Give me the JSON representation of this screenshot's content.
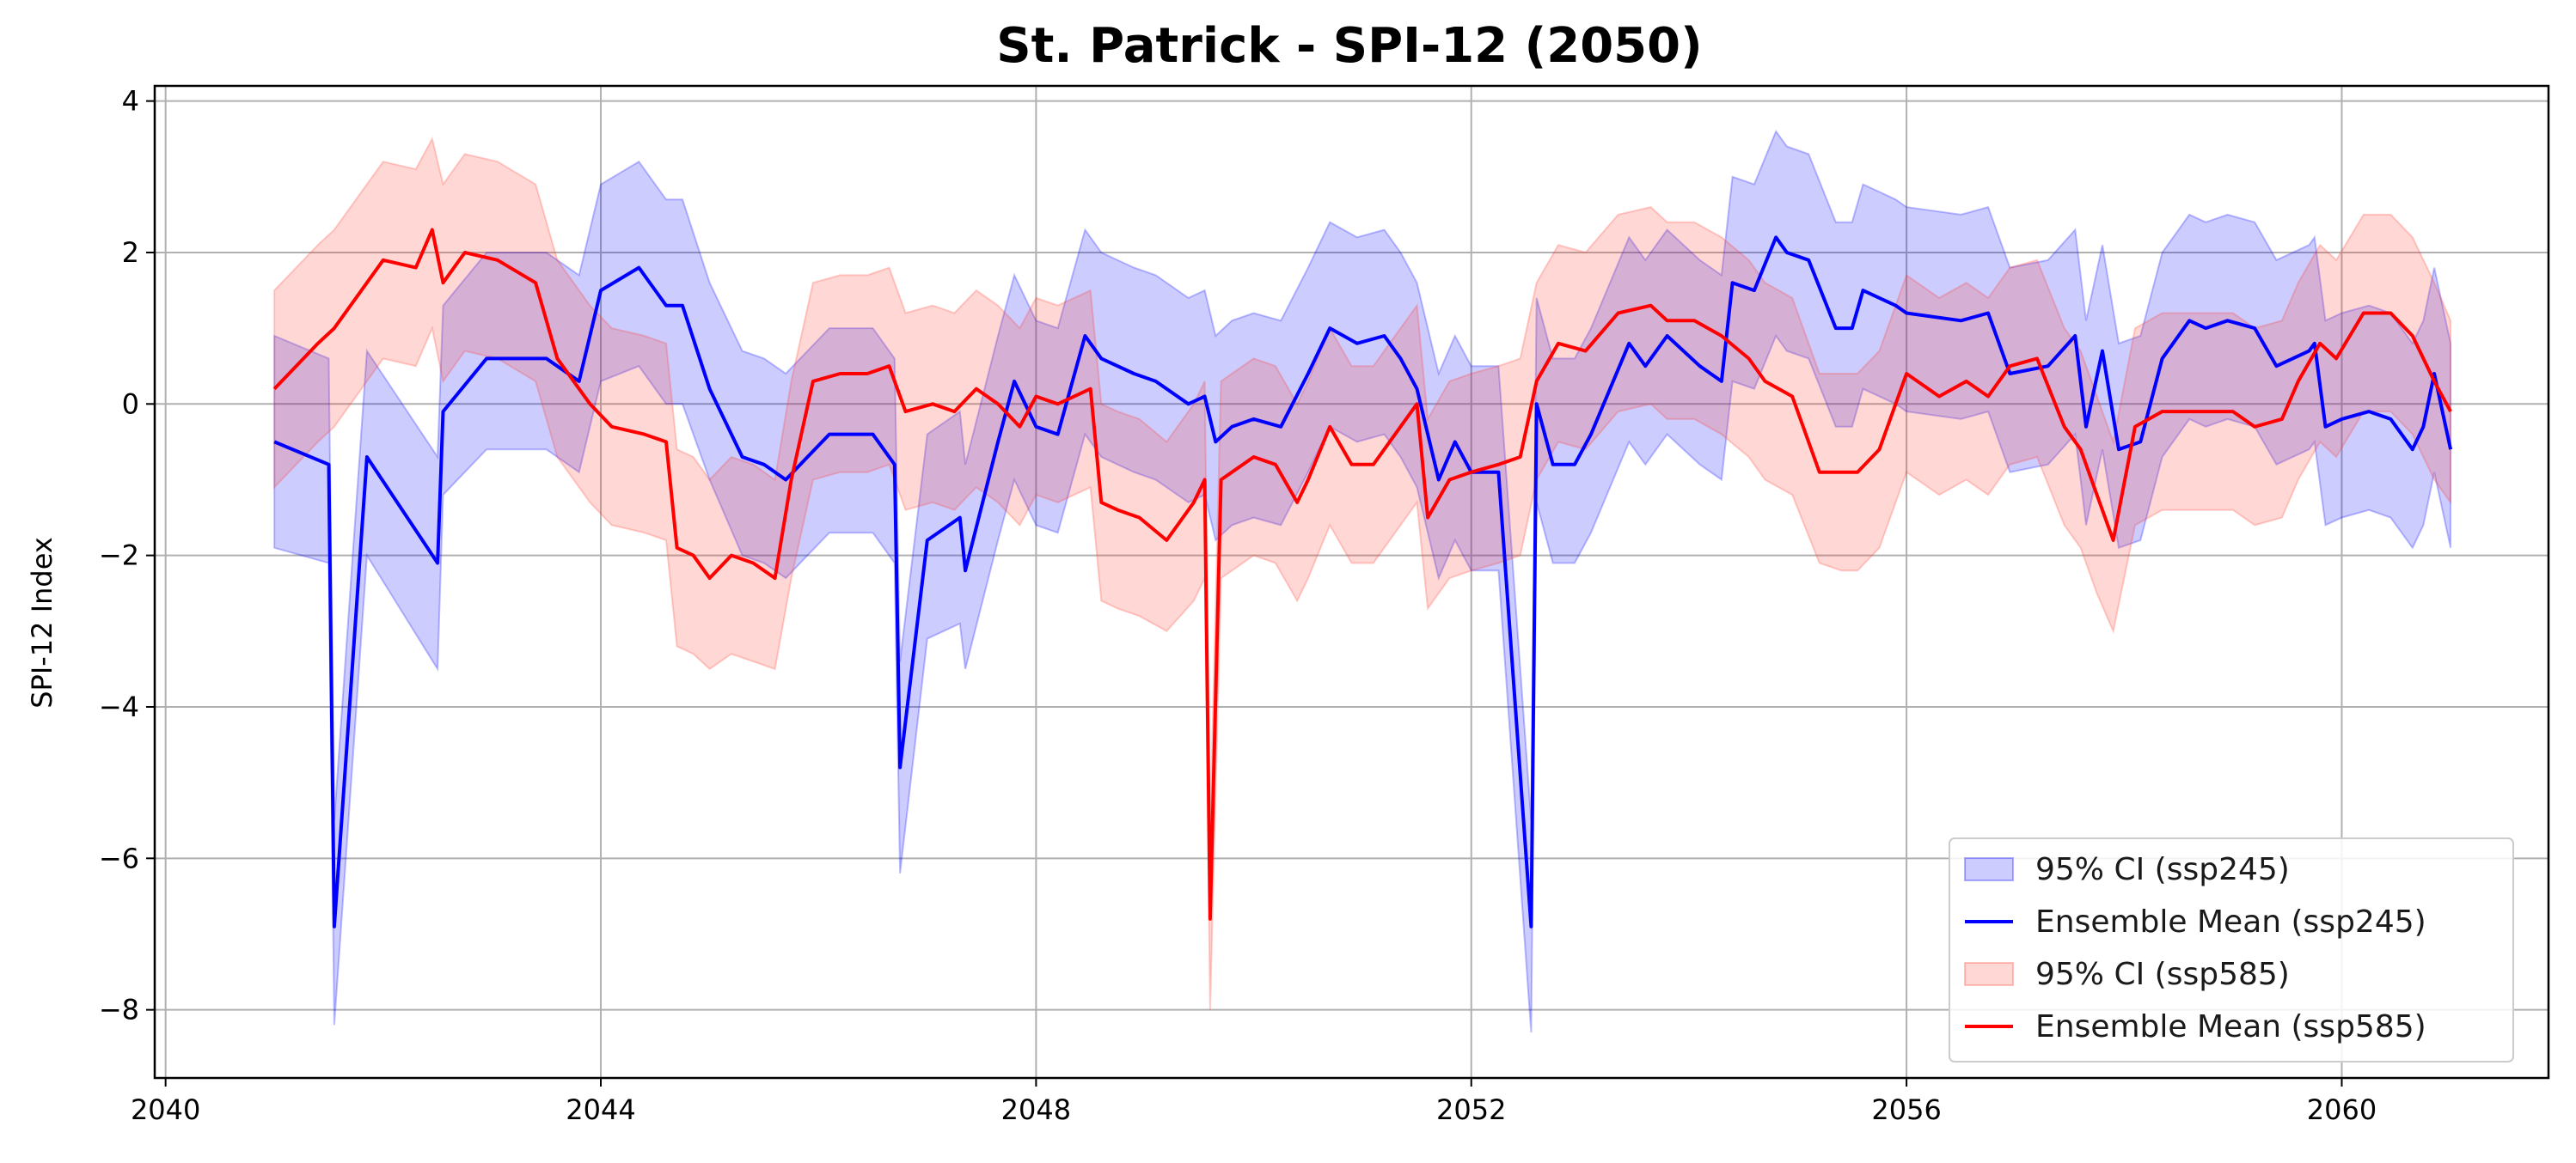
{
  "chart_data": {
    "type": "line",
    "title": "St. Patrick - SPI-12 (2050)",
    "xlabel": "",
    "ylabel": "SPI-12 Index",
    "xlim": [
      2039.9,
      2061.9
    ],
    "ylim": [
      -8.9,
      4.2
    ],
    "xticks": [
      2040,
      2044,
      2048,
      2052,
      2056,
      2060
    ],
    "yticks": [
      4,
      2,
      0,
      -2,
      -4,
      -6,
      -8
    ],
    "ytick_labels": [
      "4",
      "2",
      "0",
      "−2",
      "−4",
      "−6",
      "−8"
    ],
    "grid": true,
    "legend_position": "lower-right",
    "legend": [
      {
        "label": "95% CI (ssp245)",
        "kind": "area",
        "color": "#0000ff"
      },
      {
        "label": "Ensemble Mean (ssp245)",
        "kind": "line",
        "color": "#0000ff"
      },
      {
        "label": "95% CI (ssp585)",
        "kind": "area",
        "color": "#ff3b2f"
      },
      {
        "label": "Ensemble Mean (ssp585)",
        "kind": "line",
        "color": "#ff0000"
      }
    ],
    "series": [
      {
        "key": "ssp245",
        "line_color": "#0000ff",
        "band_color": "#0000ff",
        "x": [
          2041.0,
          2041.5,
          2041.55,
          2041.85,
          2042.5,
          2042.55,
          2042.95,
          2043.5,
          2043.8,
          2044.0,
          2044.35,
          2044.6,
          2044.75,
          2045.0,
          2045.3,
          2045.5,
          2045.7,
          2045.9,
          2046.1,
          2046.5,
          2046.7,
          2046.75,
          2047.0,
          2047.3,
          2047.35,
          2047.65,
          2047.8,
          2048.0,
          2048.2,
          2048.45,
          2048.6,
          2048.9,
          2049.1,
          2049.4,
          2049.55,
          2049.65,
          2049.8,
          2050.0,
          2050.25,
          2050.5,
          2050.7,
          2050.95,
          2051.2,
          2051.35,
          2051.5,
          2051.7,
          2051.85,
          2052.0,
          2052.25,
          2052.55,
          2052.6,
          2052.75,
          2052.95,
          2053.1,
          2053.45,
          2053.6,
          2053.8,
          2054.1,
          2054.3,
          2054.4,
          2054.6,
          2054.8,
          2054.9,
          2055.1,
          2055.35,
          2055.5,
          2055.6,
          2055.75,
          2055.9,
          2056.0,
          2056.5,
          2056.75,
          2056.95,
          2057.3,
          2057.55,
          2057.65,
          2057.8,
          2057.95,
          2058.15,
          2058.35,
          2058.6,
          2058.75,
          2058.95,
          2059.2,
          2059.4,
          2059.7,
          2059.75,
          2059.85,
          2060.0,
          2060.25,
          2060.45,
          2060.65,
          2060.75,
          2060.85,
          2061.0
        ],
        "mean": [
          -0.5,
          -0.8,
          -6.9,
          -0.7,
          -2.1,
          -0.1,
          0.6,
          0.6,
          0.3,
          1.5,
          1.8,
          1.3,
          1.3,
          0.2,
          -0.7,
          -0.8,
          -1.0,
          -0.7,
          -0.4,
          -0.4,
          -0.8,
          -4.8,
          -1.8,
          -1.5,
          -2.2,
          -0.5,
          0.3,
          -0.3,
          -0.4,
          0.9,
          0.6,
          0.4,
          0.3,
          0.0,
          0.1,
          -0.5,
          -0.3,
          -0.2,
          -0.3,
          0.4,
          1.0,
          0.8,
          0.9,
          0.6,
          0.2,
          -1.0,
          -0.5,
          -0.9,
          -0.9,
          -6.9,
          0.0,
          -0.8,
          -0.8,
          -0.4,
          0.8,
          0.5,
          0.9,
          0.5,
          0.3,
          1.6,
          1.5,
          2.2,
          2.0,
          1.9,
          1.0,
          1.0,
          1.5,
          1.4,
          1.3,
          1.2,
          1.1,
          1.2,
          0.4,
          0.5,
          0.9,
          -0.3,
          0.7,
          -0.6,
          -0.5,
          0.6,
          1.1,
          1.0,
          1.1,
          1.0,
          0.5,
          0.7,
          0.8,
          -0.3,
          -0.2,
          -0.1,
          -0.2,
          -0.6,
          -0.3,
          0.4,
          -0.6
        ],
        "lower": [
          -1.9,
          -2.1,
          -8.2,
          -2.0,
          -3.5,
          -1.2,
          -0.6,
          -0.6,
          -0.9,
          0.3,
          0.5,
          0.0,
          0.0,
          -1.0,
          -2.0,
          -2.1,
          -2.3,
          -2.0,
          -1.7,
          -1.7,
          -2.1,
          -6.2,
          -3.1,
          -2.9,
          -3.5,
          -1.8,
          -1.0,
          -1.6,
          -1.7,
          -0.4,
          -0.7,
          -0.9,
          -1.0,
          -1.3,
          -1.2,
          -1.8,
          -1.6,
          -1.5,
          -1.6,
          -0.9,
          -0.3,
          -0.5,
          -0.4,
          -0.7,
          -1.1,
          -2.3,
          -1.8,
          -2.2,
          -2.2,
          -8.3,
          -1.3,
          -2.1,
          -2.1,
          -1.7,
          -0.5,
          -0.8,
          -0.4,
          -0.8,
          -1.0,
          0.3,
          0.2,
          0.9,
          0.7,
          0.6,
          -0.3,
          -0.3,
          0.2,
          0.1,
          0.0,
          -0.1,
          -0.2,
          -0.1,
          -0.9,
          -0.8,
          -0.4,
          -1.6,
          -0.6,
          -1.9,
          -1.8,
          -0.7,
          -0.2,
          -0.3,
          -0.2,
          -0.3,
          -0.8,
          -0.6,
          -0.5,
          -1.6,
          -1.5,
          -1.4,
          -1.5,
          -1.9,
          -1.6,
          -0.9,
          -1.9
        ],
        "upper": [
          0.9,
          0.6,
          -5.5,
          0.7,
          -0.7,
          1.3,
          2.0,
          2.0,
          1.7,
          2.9,
          3.2,
          2.7,
          2.7,
          1.6,
          0.7,
          0.6,
          0.4,
          0.7,
          1.0,
          1.0,
          0.6,
          -3.4,
          -0.4,
          -0.1,
          -0.8,
          0.9,
          1.7,
          1.1,
          1.0,
          2.3,
          2.0,
          1.8,
          1.7,
          1.4,
          1.5,
          0.9,
          1.1,
          1.2,
          1.1,
          1.8,
          2.4,
          2.2,
          2.3,
          2.0,
          1.6,
          0.4,
          0.9,
          0.5,
          0.5,
          -5.5,
          1.4,
          0.6,
          0.6,
          1.0,
          2.2,
          1.9,
          2.3,
          1.9,
          1.7,
          3.0,
          2.9,
          3.6,
          3.4,
          3.3,
          2.4,
          2.4,
          2.9,
          2.8,
          2.7,
          2.6,
          2.5,
          2.6,
          1.8,
          1.9,
          2.3,
          1.1,
          2.1,
          0.8,
          0.9,
          2.0,
          2.5,
          2.4,
          2.5,
          2.4,
          1.9,
          2.1,
          2.2,
          1.1,
          1.2,
          1.3,
          1.2,
          0.8,
          1.1,
          1.8,
          0.8
        ]
      },
      {
        "key": "ssp585",
        "line_color": "#ff0000",
        "band_color": "#ff3b2f",
        "x": [
          2041.0,
          2041.2,
          2041.4,
          2041.55,
          2041.8,
          2042.0,
          2042.3,
          2042.45,
          2042.55,
          2042.75,
          2043.05,
          2043.4,
          2043.6,
          2043.9,
          2044.1,
          2044.4,
          2044.6,
          2044.7,
          2044.85,
          2045.0,
          2045.2,
          2045.4,
          2045.6,
          2045.75,
          2045.95,
          2046.2,
          2046.45,
          2046.65,
          2046.8,
          2047.05,
          2047.25,
          2047.45,
          2047.65,
          2047.85,
          2048.0,
          2048.2,
          2048.5,
          2048.6,
          2048.75,
          2048.95,
          2049.2,
          2049.45,
          2049.55,
          2049.6,
          2049.7,
          2049.8,
          2050.0,
          2050.2,
          2050.4,
          2050.5,
          2050.7,
          2050.9,
          2051.1,
          2051.3,
          2051.5,
          2051.6,
          2051.8,
          2052.0,
          2052.25,
          2052.45,
          2052.6,
          2052.8,
          2053.05,
          2053.35,
          2053.65,
          2053.8,
          2054.05,
          2054.3,
          2054.55,
          2054.7,
          2054.95,
          2055.2,
          2055.4,
          2055.55,
          2055.75,
          2056.0,
          2056.3,
          2056.55,
          2056.75,
          2056.95,
          2057.2,
          2057.45,
          2057.6,
          2057.75,
          2057.9,
          2058.1,
          2058.35,
          2058.55,
          2058.8,
          2059.0,
          2059.2,
          2059.45,
          2059.6,
          2059.8,
          2059.95,
          2060.2,
          2060.45,
          2060.65,
          2060.85,
          2061.0
        ],
        "mean": [
          0.2,
          0.5,
          0.8,
          1.0,
          1.5,
          1.9,
          1.8,
          2.3,
          1.6,
          2.0,
          1.9,
          1.6,
          0.6,
          0.0,
          -0.3,
          -0.4,
          -0.5,
          -1.9,
          -2.0,
          -2.3,
          -2.0,
          -2.1,
          -2.3,
          -1.0,
          0.3,
          0.4,
          0.4,
          0.5,
          -0.1,
          0.0,
          -0.1,
          0.2,
          0.0,
          -0.3,
          0.1,
          0.0,
          0.2,
          -1.3,
          -1.4,
          -1.5,
          -1.8,
          -1.3,
          -1.0,
          -6.8,
          -1.0,
          -0.9,
          -0.7,
          -0.8,
          -1.3,
          -1.0,
          -0.3,
          -0.8,
          -0.8,
          -0.4,
          0.0,
          -1.5,
          -1.0,
          -0.9,
          -0.8,
          -0.7,
          0.3,
          0.8,
          0.7,
          1.2,
          1.3,
          1.1,
          1.1,
          0.9,
          0.6,
          0.3,
          0.1,
          -0.9,
          -0.9,
          -0.9,
          -0.6,
          0.4,
          0.1,
          0.3,
          0.1,
          0.5,
          0.6,
          -0.3,
          -0.6,
          -1.2,
          -1.8,
          -0.3,
          -0.1,
          -0.1,
          -0.1,
          -0.1,
          -0.3,
          -0.2,
          0.3,
          0.8,
          0.6,
          1.2,
          1.2,
          0.9,
          0.3,
          -0.1
        ],
        "lower": [
          -1.1,
          -0.8,
          -0.5,
          -0.3,
          0.2,
          0.6,
          0.5,
          1.0,
          0.3,
          0.7,
          0.6,
          0.3,
          -0.7,
          -1.3,
          -1.6,
          -1.7,
          -1.8,
          -3.2,
          -3.3,
          -3.5,
          -3.3,
          -3.4,
          -3.5,
          -2.3,
          -1.0,
          -0.9,
          -0.9,
          -0.8,
          -1.4,
          -1.3,
          -1.4,
          -1.1,
          -1.3,
          -1.6,
          -1.2,
          -1.3,
          -1.1,
          -2.6,
          -2.7,
          -2.8,
          -3.0,
          -2.6,
          -2.3,
          -8.0,
          -2.3,
          -2.2,
          -2.0,
          -2.1,
          -2.6,
          -2.3,
          -1.6,
          -2.1,
          -2.1,
          -1.7,
          -1.3,
          -2.7,
          -2.3,
          -2.2,
          -2.1,
          -2.0,
          -1.0,
          -0.5,
          -0.6,
          -0.1,
          0.0,
          -0.2,
          -0.2,
          -0.4,
          -0.7,
          -1.0,
          -1.2,
          -2.1,
          -2.2,
          -2.2,
          -1.9,
          -0.9,
          -1.2,
          -1.0,
          -1.2,
          -0.8,
          -0.7,
          -1.6,
          -1.9,
          -2.5,
          -3.0,
          -1.6,
          -1.4,
          -1.4,
          -1.4,
          -1.4,
          -1.6,
          -1.5,
          -1.0,
          -0.5,
          -0.7,
          -0.1,
          -0.1,
          -0.4,
          -1.0,
          -1.3
        ],
        "upper": [
          1.5,
          1.8,
          2.1,
          2.3,
          2.8,
          3.2,
          3.1,
          3.5,
          2.9,
          3.3,
          3.2,
          2.9,
          1.9,
          1.3,
          1.0,
          0.9,
          0.8,
          -0.6,
          -0.7,
          -1.0,
          -0.7,
          -0.8,
          -1.0,
          0.3,
          1.6,
          1.7,
          1.7,
          1.8,
          1.2,
          1.3,
          1.2,
          1.5,
          1.3,
          1.0,
          1.4,
          1.3,
          1.5,
          0.0,
          -0.1,
          -0.2,
          -0.5,
          0.0,
          0.3,
          -5.6,
          0.3,
          0.4,
          0.6,
          0.5,
          0.0,
          0.3,
          1.0,
          0.5,
          0.5,
          0.9,
          1.3,
          -0.2,
          0.3,
          0.4,
          0.5,
          0.6,
          1.6,
          2.1,
          2.0,
          2.5,
          2.6,
          2.4,
          2.4,
          2.2,
          1.9,
          1.6,
          1.4,
          0.4,
          0.4,
          0.4,
          0.7,
          1.7,
          1.4,
          1.6,
          1.4,
          1.8,
          1.9,
          1.0,
          0.7,
          0.1,
          -0.5,
          1.0,
          1.2,
          1.2,
          1.2,
          1.2,
          1.0,
          1.1,
          1.6,
          2.1,
          1.9,
          2.5,
          2.5,
          2.2,
          1.6,
          1.1
        ]
      }
    ]
  }
}
